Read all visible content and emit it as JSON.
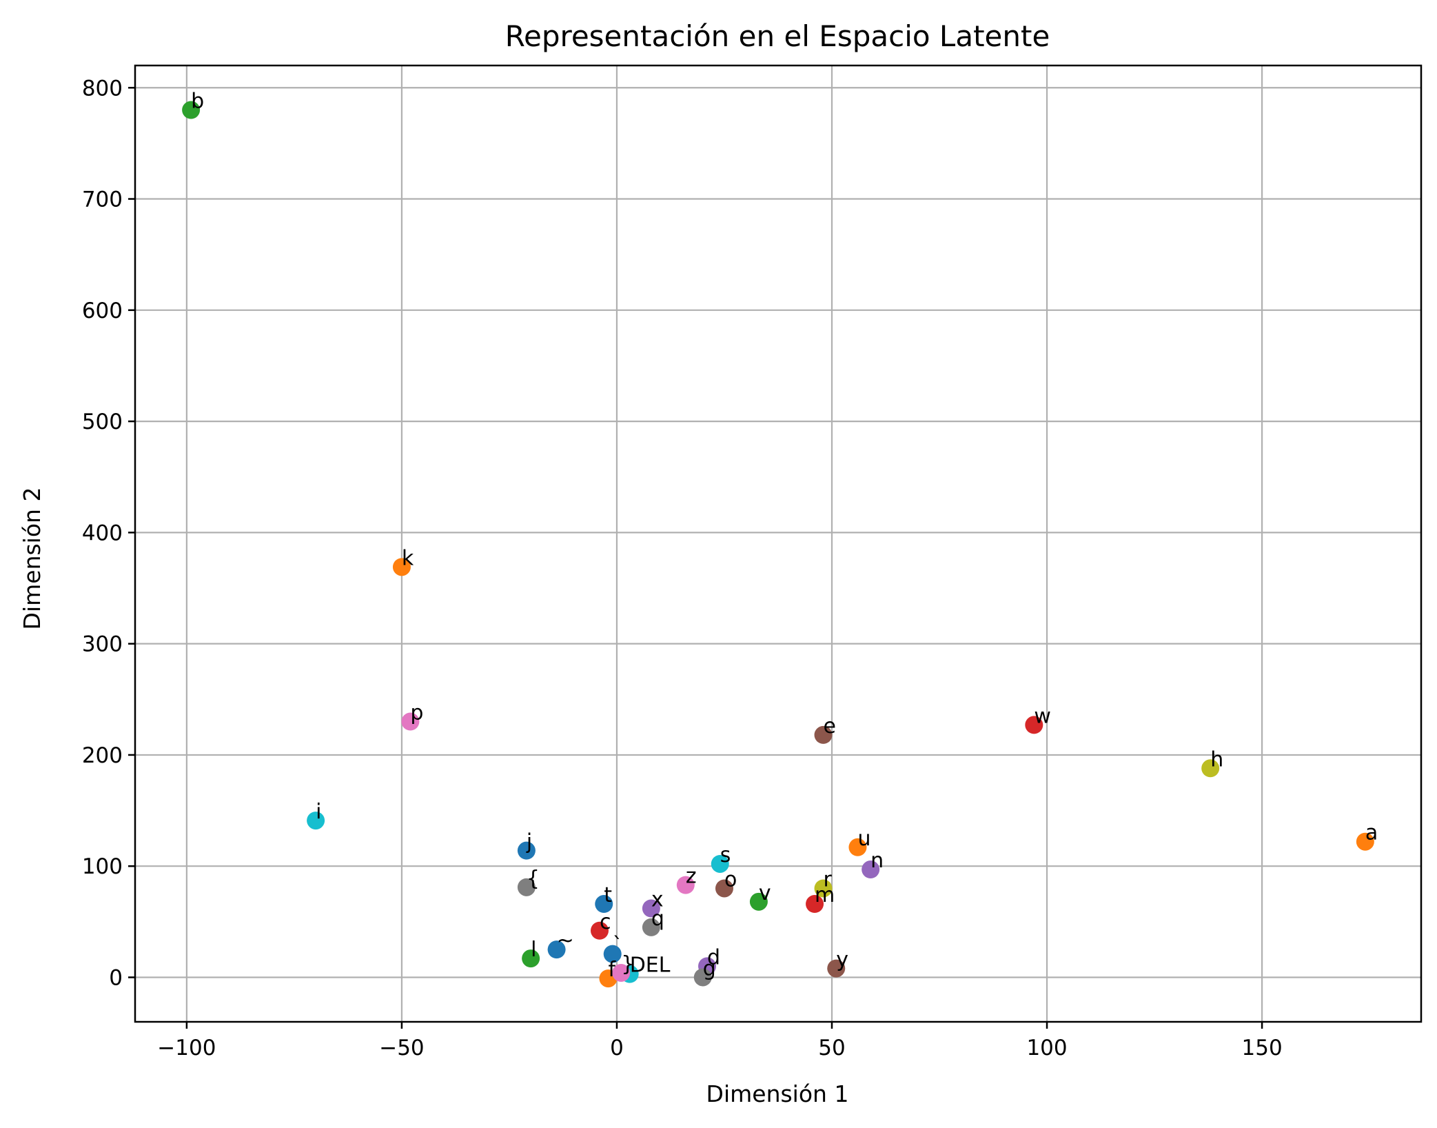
{
  "chart_data": {
    "type": "scatter",
    "title": "Representación en el Espacio Latente",
    "xlabel": "Dimensión 1",
    "ylabel": "Dimensión 2",
    "xlim": [
      -112,
      187
    ],
    "ylim": [
      -40,
      820
    ],
    "xticks": [
      -100,
      -50,
      0,
      50,
      100,
      150
    ],
    "xtick_labels": [
      "−100",
      "−50",
      "0",
      "50",
      "100",
      "150"
    ],
    "yticks": [
      0,
      100,
      200,
      300,
      400,
      500,
      600,
      700,
      800
    ],
    "ytick_labels": [
      "0",
      "100",
      "200",
      "300",
      "400",
      "500",
      "600",
      "700",
      "800"
    ],
    "grid": true,
    "colors": [
      "#1f77b4",
      "#ff7f0e",
      "#2ca02c",
      "#d62728",
      "#9467bd",
      "#8c564b",
      "#e377c2",
      "#7f7f7f",
      "#bcbd22",
      "#17becf"
    ],
    "points": [
      {
        "label": "DEL",
        "x": 3,
        "y": 3,
        "color": "#17becf"
      },
      {
        "label": "b",
        "x": -99,
        "y": 780,
        "color": "#2ca02c"
      },
      {
        "label": "k",
        "x": -50,
        "y": 369,
        "color": "#ff7f0e"
      },
      {
        "label": "p",
        "x": -48,
        "y": 230,
        "color": "#e377c2"
      },
      {
        "label": "i",
        "x": -70,
        "y": 141,
        "color": "#17becf"
      },
      {
        "label": "j",
        "x": -21,
        "y": 114,
        "color": "#1f77b4"
      },
      {
        "label": "{",
        "x": -21,
        "y": 81,
        "color": "#7f7f7f"
      },
      {
        "label": "l",
        "x": -20,
        "y": 17,
        "color": "#2ca02c"
      },
      {
        "label": "~",
        "x": -14,
        "y": 25,
        "color": "#1f77b4"
      },
      {
        "label": "c",
        "x": -4,
        "y": 42,
        "color": "#d62728"
      },
      {
        "label": "t",
        "x": -3,
        "y": 66,
        "color": "#1f77b4"
      },
      {
        "label": "`",
        "x": -1,
        "y": 21,
        "color": "#1f77b4"
      },
      {
        "label": "f",
        "x": -2,
        "y": -1,
        "color": "#ff7f0e"
      },
      {
        "label": "}",
        "x": 1,
        "y": 4,
        "color": "#e377c2"
      },
      {
        "label": "x",
        "x": 8,
        "y": 62,
        "color": "#9467bd"
      },
      {
        "label": "q",
        "x": 8,
        "y": 45,
        "color": "#7f7f7f"
      },
      {
        "label": "z",
        "x": 16,
        "y": 83,
        "color": "#e377c2"
      },
      {
        "label": "s",
        "x": 24,
        "y": 102,
        "color": "#17becf"
      },
      {
        "label": "o",
        "x": 25,
        "y": 80,
        "color": "#8c564b"
      },
      {
        "label": "d",
        "x": 21,
        "y": 10,
        "color": "#9467bd"
      },
      {
        "label": "g",
        "x": 20,
        "y": 0,
        "color": "#7f7f7f"
      },
      {
        "label": "v",
        "x": 33,
        "y": 68,
        "color": "#2ca02c"
      },
      {
        "label": "m",
        "x": 46,
        "y": 66,
        "color": "#d62728"
      },
      {
        "label": "r",
        "x": 48,
        "y": 80,
        "color": "#bcbd22"
      },
      {
        "label": "e",
        "x": 48,
        "y": 218,
        "color": "#8c564b"
      },
      {
        "label": "u",
        "x": 56,
        "y": 117,
        "color": "#ff7f0e"
      },
      {
        "label": "n",
        "x": 59,
        "y": 97,
        "color": "#9467bd"
      },
      {
        "label": "y",
        "x": 51,
        "y": 8,
        "color": "#8c564b"
      },
      {
        "label": "w",
        "x": 97,
        "y": 227,
        "color": "#d62728"
      },
      {
        "label": "h",
        "x": 138,
        "y": 188,
        "color": "#bcbd22"
      },
      {
        "label": "a",
        "x": 174,
        "y": 122,
        "color": "#ff7f0e"
      }
    ]
  }
}
